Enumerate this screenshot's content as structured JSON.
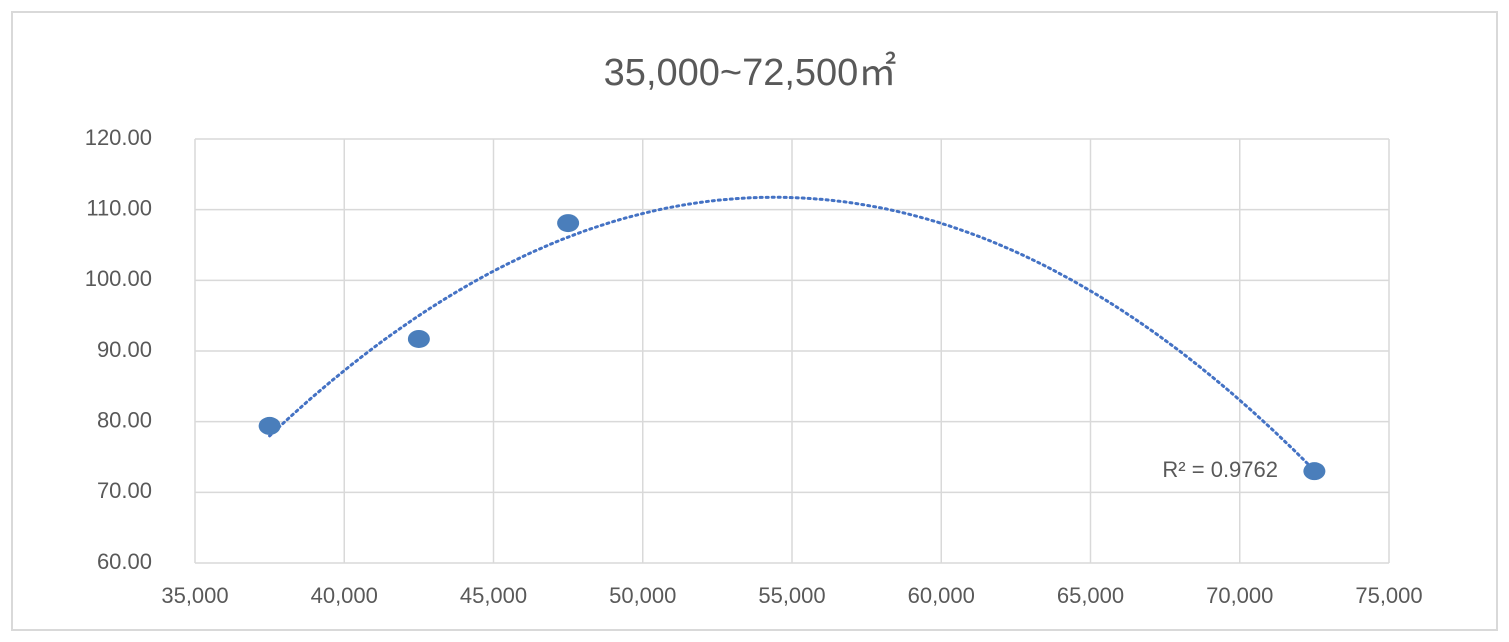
{
  "chart_data": {
    "type": "scatter",
    "title": "35,000~72,500㎡",
    "x": [
      37500,
      42500,
      47500,
      72500
    ],
    "values": [
      79.4,
      91.7,
      108.1,
      73.0
    ],
    "color": "#4a7ebb",
    "trendline": "polynomial",
    "trendline_color": "#4472c4",
    "annotation": "R² = 0.9762",
    "xlim": [
      35000,
      75000
    ],
    "xticks": [
      {
        "value": 35000,
        "label": "35,000"
      },
      {
        "value": 40000,
        "label": "40,000"
      },
      {
        "value": 45000,
        "label": "45,000"
      },
      {
        "value": 50000,
        "label": "50,000"
      },
      {
        "value": 55000,
        "label": "55,000"
      },
      {
        "value": 60000,
        "label": "60,000"
      },
      {
        "value": 65000,
        "label": "65,000"
      },
      {
        "value": 70000,
        "label": "70,000"
      },
      {
        "value": 75000,
        "label": "75,000"
      }
    ],
    "ylim": [
      60,
      120
    ],
    "yticks": [
      {
        "value": 60,
        "label": "60.00"
      },
      {
        "value": 70,
        "label": "70.00"
      },
      {
        "value": 80,
        "label": "80.00"
      },
      {
        "value": 90,
        "label": "90.00"
      },
      {
        "value": 100,
        "label": "100.00"
      },
      {
        "value": 110,
        "label": "110.00"
      },
      {
        "value": 120,
        "label": "120.00"
      }
    ],
    "grid": true
  }
}
